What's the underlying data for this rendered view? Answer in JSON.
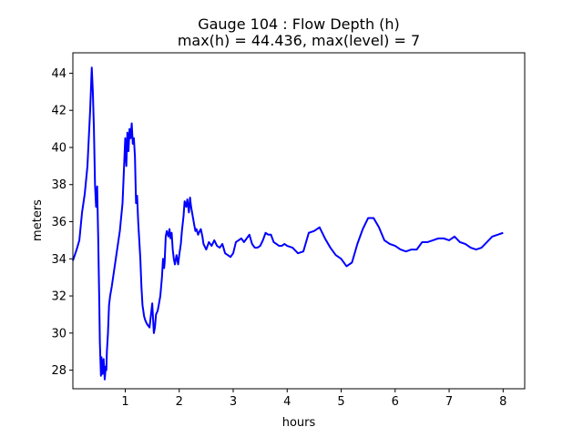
{
  "chart_data": {
    "type": "line",
    "title": "Gauge 104 : Flow Depth (h)",
    "subtitle": "max(h) =  44.436,    max(level) = 7",
    "xlabel": "hours",
    "ylabel": "meters",
    "xlim": [
      0.03,
      8.4
    ],
    "ylim": [
      27.0,
      45.1
    ],
    "xticks": [
      1,
      2,
      3,
      4,
      5,
      6,
      7,
      8
    ],
    "yticks": [
      28,
      30,
      32,
      34,
      36,
      38,
      40,
      42,
      44
    ],
    "grid": false,
    "legend": "none",
    "series": [
      {
        "color": "#0000ff",
        "x": [
          0.03,
          0.1,
          0.15,
          0.2,
          0.25,
          0.3,
          0.35,
          0.38,
          0.4,
          0.42,
          0.44,
          0.46,
          0.48,
          0.5,
          0.52,
          0.53,
          0.55,
          0.56,
          0.58,
          0.6,
          0.62,
          0.64,
          0.65,
          0.66,
          0.68,
          0.7,
          0.72,
          0.75,
          0.8,
          0.85,
          0.9,
          0.95,
          1.0,
          1.02,
          1.04,
          1.06,
          1.08,
          1.1,
          1.12,
          1.14,
          1.16,
          1.18,
          1.2,
          1.22,
          1.24,
          1.26,
          1.28,
          1.3,
          1.32,
          1.35,
          1.37,
          1.4,
          1.45,
          1.5,
          1.53,
          1.55,
          1.57,
          1.6,
          1.62,
          1.65,
          1.68,
          1.7,
          1.72,
          1.73,
          1.75,
          1.77,
          1.8,
          1.82,
          1.84,
          1.86,
          1.88,
          1.9,
          1.92,
          1.95,
          1.98,
          2.0,
          2.03,
          2.05,
          2.08,
          2.1,
          2.13,
          2.15,
          2.18,
          2.2,
          2.22,
          2.25,
          2.28,
          2.3,
          2.32,
          2.35,
          2.38,
          2.4,
          2.43,
          2.45,
          2.5,
          2.55,
          2.6,
          2.65,
          2.7,
          2.75,
          2.8,
          2.85,
          2.9,
          2.95,
          3.0,
          3.05,
          3.1,
          3.15,
          3.2,
          3.25,
          3.3,
          3.35,
          3.4,
          3.45,
          3.5,
          3.55,
          3.6,
          3.65,
          3.7,
          3.75,
          3.8,
          3.85,
          3.9,
          3.95,
          4.0,
          4.1,
          4.2,
          4.3,
          4.4,
          4.5,
          4.6,
          4.7,
          4.8,
          4.9,
          5.0,
          5.1,
          5.2,
          5.3,
          5.4,
          5.5,
          5.6,
          5.7,
          5.8,
          5.9,
          6.0,
          6.1,
          6.2,
          6.3,
          6.4,
          6.5,
          6.6,
          6.7,
          6.8,
          6.9,
          7.0,
          7.1,
          7.2,
          7.3,
          7.4,
          7.5,
          7.6,
          7.7,
          7.8,
          7.9,
          8.0
        ],
        "y": [
          33.9,
          34.5,
          35.0,
          36.5,
          37.5,
          39.0,
          42.0,
          44.3,
          43.0,
          41.0,
          38.0,
          36.8,
          37.9,
          35.0,
          31.5,
          29.5,
          27.7,
          28.7,
          27.8,
          28.6,
          27.5,
          28.2,
          28.0,
          29.0,
          30.0,
          31.5,
          32.0,
          32.5,
          33.5,
          34.5,
          35.5,
          37.0,
          40.5,
          39.0,
          40.8,
          39.8,
          41.0,
          40.5,
          41.3,
          40.2,
          40.5,
          39.5,
          37.0,
          37.4,
          36.0,
          35.0,
          34.0,
          32.5,
          31.5,
          30.9,
          30.7,
          30.5,
          30.3,
          31.6,
          30.0,
          30.3,
          31.0,
          31.2,
          31.5,
          32.0,
          33.0,
          34.0,
          33.5,
          33.8,
          35.2,
          35.5,
          35.2,
          35.6,
          35.1,
          35.4,
          34.5,
          34.0,
          33.7,
          34.2,
          33.7,
          34.2,
          34.8,
          35.5,
          36.3,
          37.1,
          36.8,
          37.2,
          36.5,
          37.3,
          36.8,
          36.3,
          35.8,
          35.5,
          35.6,
          35.3,
          35.5,
          35.6,
          35.2,
          34.8,
          34.5,
          34.9,
          34.7,
          35.0,
          34.7,
          34.6,
          34.8,
          34.3,
          34.2,
          34.1,
          34.3,
          34.9,
          35.0,
          35.1,
          34.9,
          35.1,
          35.3,
          34.8,
          34.6,
          34.6,
          34.7,
          35.0,
          35.4,
          35.3,
          35.3,
          34.9,
          34.8,
          34.7,
          34.7,
          34.8,
          34.7,
          34.6,
          34.3,
          34.4,
          35.4,
          35.5,
          35.7,
          35.1,
          34.6,
          34.2,
          34.0,
          33.6,
          33.8,
          34.8,
          35.6,
          36.2,
          36.2,
          35.7,
          35.0,
          34.8,
          34.7,
          34.5,
          34.4,
          34.5,
          34.5,
          34.9,
          34.9,
          35.0,
          35.1,
          35.1,
          35.0,
          35.2,
          34.9,
          34.8,
          34.6,
          34.5,
          34.6,
          34.9,
          35.2,
          35.3,
          35.4
        ]
      }
    ]
  }
}
